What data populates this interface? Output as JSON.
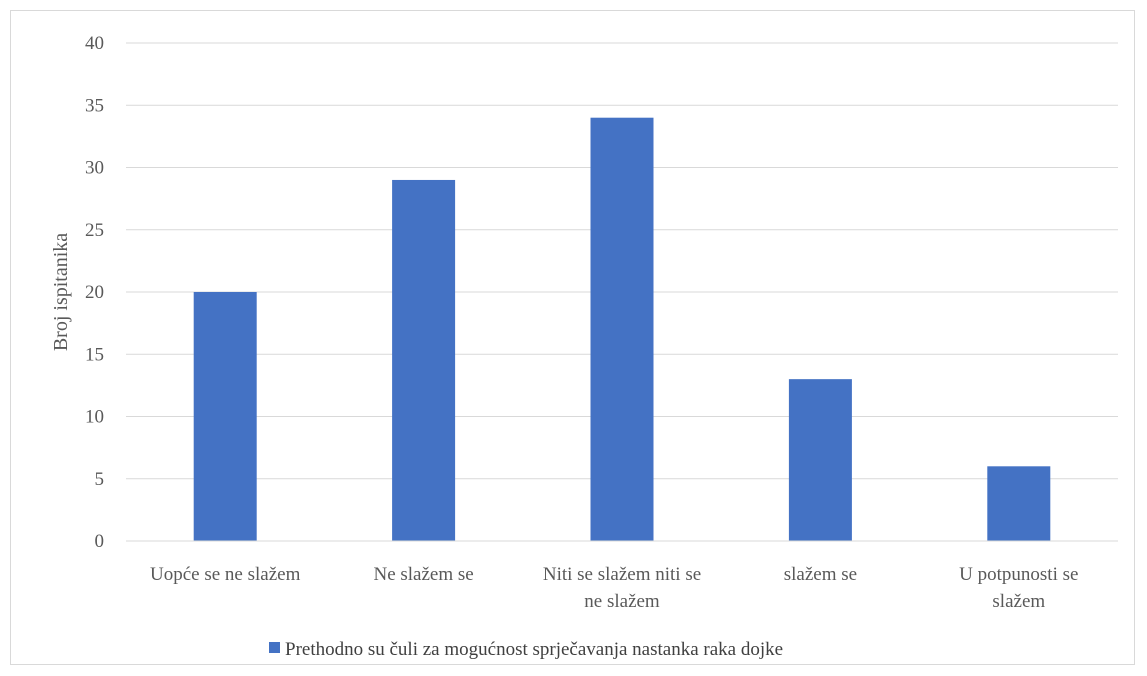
{
  "chart_data": {
    "type": "bar",
    "categories": [
      [
        "Uopće se ne slažem"
      ],
      [
        "Ne slažem se"
      ],
      [
        "Niti se slažem niti se",
        "ne slažem"
      ],
      [
        "slažem se"
      ],
      [
        "U potpunosti se",
        "slažem"
      ]
    ],
    "series": [
      {
        "name": "Prethodno su čuli za mogućnost sprječavanja nastanka raka dojke",
        "values": [
          20,
          29,
          34,
          13,
          6
        ],
        "color": "#4472c4"
      }
    ],
    "title": "",
    "xlabel": "",
    "ylabel": "Broj ispitanika",
    "ylim": [
      0,
      40
    ],
    "yticks": [
      0,
      5,
      10,
      15,
      20,
      25,
      30,
      35,
      40
    ],
    "grid": true,
    "legend_position": "bottom-center",
    "colors": {
      "gridline": "#d9d9d9",
      "axis": "#d9d9d9",
      "text": "#595959"
    }
  }
}
